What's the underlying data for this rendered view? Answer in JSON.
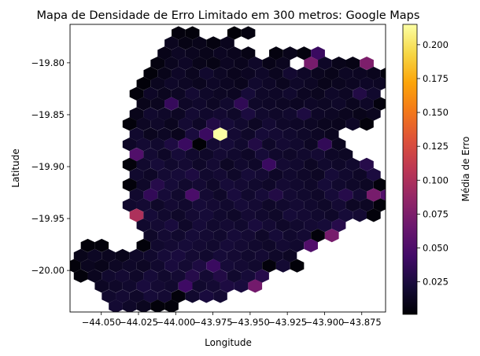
{
  "chart_data": {
    "type": "heatmap",
    "subtype": "hexbin",
    "title": "Mapa de Densidade de Erro Limitado em 300 metros: Google Maps",
    "xlabel": "Longitude",
    "ylabel": "Latitude",
    "xlim": [
      -44.071,
      -43.859
    ],
    "ylim": [
      -20.04,
      -19.763
    ],
    "xticks": [
      -44.05,
      -44.025,
      -44.0,
      -43.975,
      -43.95,
      -43.925,
      -43.9,
      -43.875
    ],
    "xtick_labels": [
      "−44.050",
      "−44.025",
      "−44.000",
      "−43.975",
      "−43.950",
      "−43.925",
      "−43.900",
      "−43.875"
    ],
    "yticks": [
      -19.8,
      -19.85,
      -19.9,
      -19.95,
      -20.0
    ],
    "ytick_labels": [
      "−19.80",
      "−19.85",
      "−19.90",
      "−19.95",
      "−20.00"
    ],
    "grid": false,
    "colormap": "inferno",
    "colorbar": {
      "label": "Média de Erro",
      "range": [
        0.001,
        0.215
      ],
      "ticks": [
        0.025,
        0.05,
        0.075,
        0.1,
        0.125,
        0.15,
        0.175,
        0.2
      ],
      "tick_labels": [
        "0.025",
        "0.050",
        "0.075",
        "0.100",
        "0.125",
        "0.150",
        "0.175",
        "0.200"
      ]
    },
    "hex_step": {
      "dx": 0.00937,
      "dy": 0.00975
    },
    "rows": [
      {
        "y": -19.7713,
        "x0": -43.9981,
        "values": [
          0.005,
          0.004,
          null,
          null,
          0.003,
          0.006
        ]
      },
      {
        "y": -19.781,
        "x0": -44.0028,
        "values": [
          0.012,
          0.008,
          0.01,
          0.006,
          0.011
        ]
      },
      {
        "y": -19.7908,
        "x0": -44.0075,
        "values": [
          0.009,
          0.014,
          0.012,
          0.01,
          0.013,
          0.011,
          0.008,
          null,
          0.006,
          0.01,
          0.005,
          0.04
        ]
      },
      {
        "y": -19.8005,
        "x0": -44.0122,
        "values": [
          0.006,
          0.012,
          0.015,
          0.01,
          0.008,
          0.013,
          0.011,
          0.016,
          0.009,
          0.012,
          null,
          0.072,
          0.015,
          0.01,
          0.008,
          0.075
        ]
      },
      {
        "y": -19.8103,
        "x0": -44.0169,
        "values": [
          0.004,
          0.01,
          0.015,
          0.012,
          0.018,
          0.014,
          0.011,
          0.013,
          0.016,
          0.012,
          0.019,
          0.015,
          0.012,
          0.01,
          0.014,
          0.013,
          0.011,
          0.005
        ]
      },
      {
        "y": -19.82,
        "x0": -44.0216,
        "values": [
          0.003,
          0.012,
          0.016,
          0.014,
          0.012,
          0.015,
          0.013,
          0.011,
          0.018,
          0.015,
          0.012,
          0.016,
          0.014,
          0.01,
          0.012,
          0.013,
          0.015,
          0.014
        ]
      },
      {
        "y": -19.8298,
        "x0": -44.0263,
        "values": [
          0.004,
          0.015,
          0.012,
          0.014,
          0.02,
          0.016,
          0.014,
          0.013,
          0.022,
          0.016,
          0.015,
          0.018,
          0.013,
          0.012,
          0.016,
          0.014,
          0.028,
          0.018
        ]
      },
      {
        "y": -19.8395,
        "x0": -44.0216,
        "values": [
          0.01,
          0.012,
          0.038,
          0.015,
          0.017,
          0.014,
          0.018,
          0.035,
          0.016,
          0.015,
          0.014,
          0.013,
          0.015,
          0.014,
          0.016,
          0.012,
          0.015,
          0.005
        ]
      },
      {
        "y": -19.8493,
        "x0": -44.0263,
        "values": [
          0.01,
          0.018,
          0.016,
          0.014,
          0.02,
          0.017,
          0.019,
          0.016,
          0.025,
          0.018,
          0.016,
          0.018,
          0.026,
          0.015,
          0.014,
          0.012,
          0.01,
          0.012
        ]
      },
      {
        "y": -19.859,
        "x0": -44.031,
        "values": [
          0.004,
          0.014,
          0.016,
          0.012,
          0.02,
          0.015,
          0.028,
          0.022,
          0.018,
          0.014,
          0.02,
          0.016,
          0.015,
          0.014,
          0.012,
          0.011,
          0.015,
          0.004
        ]
      },
      {
        "y": -19.8688,
        "x0": -44.0263,
        "values": [
          0.018,
          0.012,
          0.014,
          0.011,
          0.024,
          0.04,
          0.215,
          0.02,
          0.016,
          0.022,
          0.02,
          0.018,
          0.016,
          0.014,
          0.012
        ]
      },
      {
        "y": -19.8785,
        "x0": -44.031,
        "values": [
          0.015,
          0.02,
          0.018,
          0.026,
          0.04,
          0.002,
          0.02,
          0.022,
          0.018,
          0.028,
          0.016,
          0.02,
          0.018,
          0.014,
          0.036,
          0.012
        ]
      },
      {
        "y": -19.8883,
        "x0": -44.0263,
        "values": [
          0.052,
          0.02,
          0.015,
          0.022,
          0.018,
          0.016,
          0.02,
          0.018,
          0.015,
          0.022,
          0.017,
          0.016,
          0.018,
          0.02,
          0.015,
          0.014
        ]
      },
      {
        "y": -19.898,
        "x0": -44.031,
        "values": [
          0.004,
          0.018,
          0.022,
          0.018,
          0.02,
          0.016,
          0.02,
          0.014,
          0.018,
          0.016,
          0.04,
          0.02,
          0.018,
          0.014,
          0.018,
          0.016,
          0.018,
          0.03
        ]
      },
      {
        "y": -19.9078,
        "x0": -44.0263,
        "values": [
          0.018,
          0.015,
          0.02,
          0.022,
          0.026,
          0.018,
          0.02,
          0.016,
          0.022,
          0.02,
          0.015,
          0.018,
          0.016,
          0.014,
          0.022,
          0.018,
          0.015,
          0.025
        ]
      },
      {
        "y": -19.9175,
        "x0": -44.031,
        "values": [
          0.004,
          0.016,
          0.03,
          0.022,
          0.018,
          0.02,
          0.016,
          0.022,
          0.02,
          0.018,
          0.016,
          0.02,
          0.018,
          0.016,
          0.022,
          0.018,
          0.016,
          0.014,
          0.004
        ]
      },
      {
        "y": -19.9273,
        "x0": -44.0263,
        "values": [
          0.018,
          0.036,
          0.022,
          0.018,
          0.048,
          0.02,
          0.016,
          0.024,
          0.018,
          0.022,
          0.028,
          0.02,
          0.018,
          0.016,
          0.022,
          0.03,
          0.02,
          0.072,
          0.052
        ]
      },
      {
        "y": -19.937,
        "x0": -44.031,
        "values": [
          0.018,
          0.02,
          0.016,
          0.02,
          0.018,
          0.022,
          0.02,
          0.018,
          0.022,
          0.02,
          0.016,
          0.018,
          0.02,
          0.018,
          0.016,
          0.02,
          0.014,
          0.014,
          0.004
        ]
      },
      {
        "y": -19.9468,
        "x0": -44.0263,
        "values": [
          0.1,
          0.022,
          0.018,
          0.016,
          0.02,
          0.022,
          0.018,
          0.016,
          0.02,
          0.018,
          0.016,
          0.022,
          0.02,
          0.018,
          0.016,
          0.022,
          0.02,
          0.004
        ]
      },
      {
        "y": -19.9565,
        "x0": -44.0216,
        "values": [
          0.018,
          0.02,
          0.024,
          0.016,
          0.022,
          0.018,
          0.02,
          0.018,
          0.024,
          0.02,
          0.016,
          0.018,
          0.02,
          0.022,
          0.03
        ]
      },
      {
        "y": -19.9663,
        "x0": -44.0169,
        "values": [
          0.016,
          0.02,
          0.018,
          0.022,
          0.02,
          0.018,
          0.022,
          0.02,
          0.016,
          0.022,
          0.018,
          0.02,
          0.004,
          0.072
        ]
      },
      {
        "y": -19.976,
        "x0": -44.0591,
        "values": [
          0.003,
          0.004,
          null,
          null,
          0.004,
          0.018,
          0.02,
          0.022,
          0.02,
          0.018,
          0.022,
          0.02,
          0.018,
          0.016,
          0.02,
          0.018,
          0.052
        ]
      },
      {
        "y": -19.9858,
        "x0": -44.0638,
        "values": [
          0.01,
          0.014,
          0.012,
          0.01,
          0.016,
          0.018,
          0.022,
          0.024,
          0.02,
          0.018,
          0.022,
          0.02,
          0.018,
          0.02,
          0.016,
          0.014
        ]
      },
      {
        "y": -19.9955,
        "x0": -44.0684,
        "values": [
          0.004,
          0.012,
          0.01,
          0.014,
          0.016,
          0.014,
          0.018,
          0.024,
          0.02,
          0.026,
          0.04,
          0.022,
          0.02,
          0.018,
          0.004,
          0.02,
          0.003
        ]
      },
      {
        "y": -20.0053,
        "x0": -44.0638,
        "values": [
          0.004,
          0.012,
          0.018,
          0.02,
          0.016,
          0.022,
          0.018,
          0.02,
          0.03,
          0.02,
          0.028,
          0.018,
          0.022,
          0.03
        ]
      },
      {
        "y": -20.015,
        "x0": -44.0497,
        "values": [
          0.014,
          0.016,
          0.018,
          0.024,
          0.02,
          0.018,
          0.042,
          0.018,
          0.02,
          0.026,
          0.024,
          0.07
        ]
      },
      {
        "y": -20.0248,
        "x0": -44.045,
        "values": [
          0.018,
          0.02,
          0.016,
          0.022,
          0.02,
          0.004,
          0.018,
          0.024,
          0.02
        ]
      },
      {
        "y": -20.0345,
        "x0": -44.0403,
        "values": [
          0.02,
          0.016,
          0.012,
          0.004,
          0.004
        ]
      }
    ]
  }
}
